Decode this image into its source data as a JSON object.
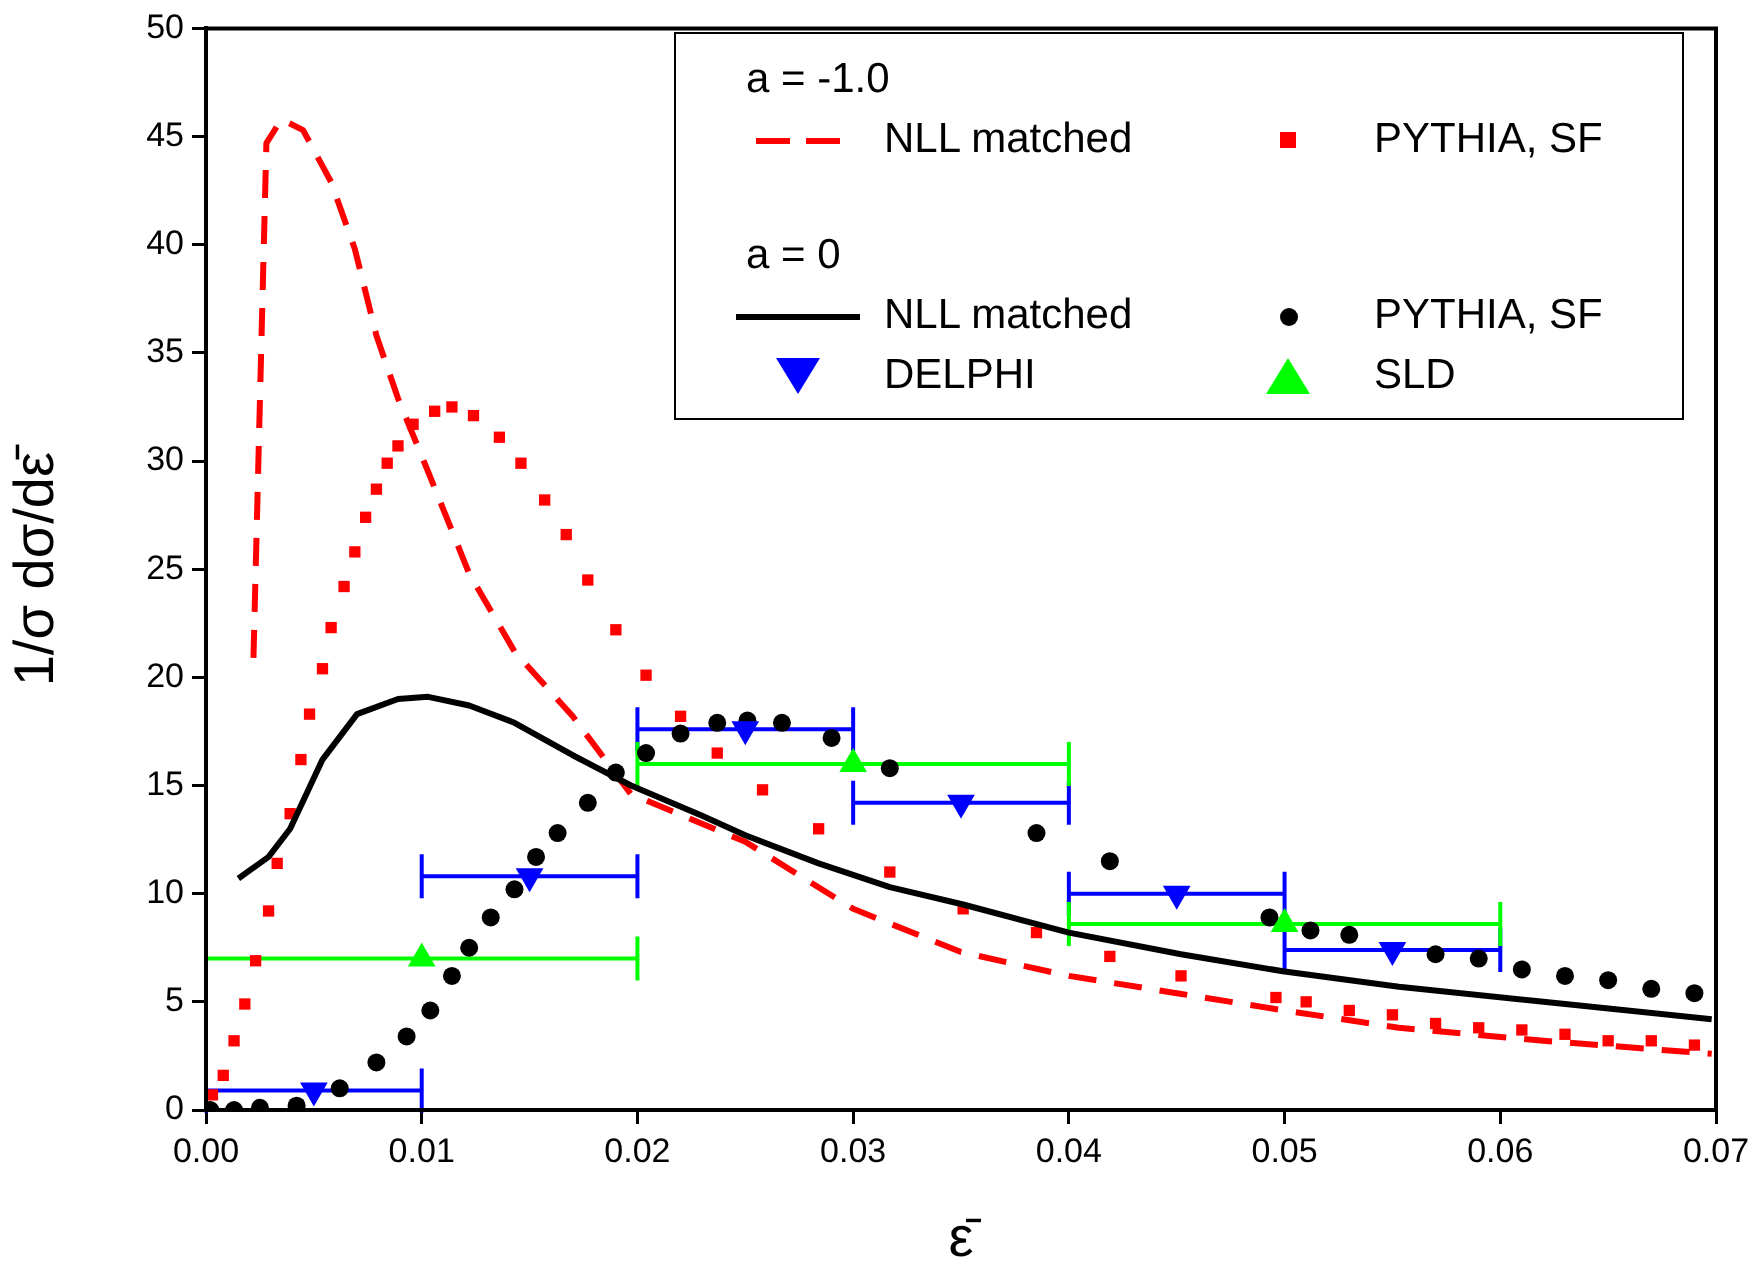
{
  "chart_data": {
    "type": "line",
    "xlabel": "ε̄",
    "ylabel": "1/σ dσ/dε̄",
    "xlim": [
      0,
      0.07
    ],
    "xticks": [
      {
        "value": 0,
        "label": "0.00"
      },
      {
        "value": 0.01,
        "label": "0.01"
      },
      {
        "value": 0.02,
        "label": "0.02"
      },
      {
        "value": 0.03,
        "label": "0.03"
      },
      {
        "value": 0.04,
        "label": "0.04"
      },
      {
        "value": 0.05,
        "label": "0.05"
      },
      {
        "value": 0.06,
        "label": "0.06"
      },
      {
        "value": 0.07,
        "label": "0.07"
      }
    ],
    "ylim": [
      0,
      50
    ],
    "yticks": [
      0,
      5,
      10,
      15,
      20,
      25,
      30,
      35,
      40,
      45,
      50
    ],
    "grid": false,
    "legend": "top right",
    "annotations": [
      "a = -1.0",
      "a = 0"
    ],
    "series": [
      {
        "name": "NLL matched",
        "color": "#ff0000",
        "line_style": "dashed",
        "marker": "none",
        "x": [
          0.0022,
          0.0028,
          0.0035,
          0.0045,
          0.0058,
          0.0069,
          0.0079,
          0.0089,
          0.0103,
          0.0122,
          0.0143,
          0.017,
          0.0197,
          0.025,
          0.03,
          0.035,
          0.04,
          0.045,
          0.05,
          0.0553,
          0.062,
          0.0698
        ],
        "values": [
          20.9,
          44.7,
          45.8,
          45.3,
          42.9,
          39.8,
          35.8,
          32.9,
          29.5,
          24.8,
          21.2,
          18.2,
          14.6,
          12.4,
          9.3,
          7.3,
          6.2,
          5.4,
          4.6,
          3.8,
          3.2,
          2.6
        ]
      },
      {
        "name": "PYTHIA, SF",
        "type": "scatter",
        "color": "#ff0000",
        "marker": "square",
        "x": [
          0.0003,
          0.0008,
          0.0013,
          0.0018,
          0.0023,
          0.0029,
          0.0033,
          0.0039,
          0.0044,
          0.0048,
          0.0054,
          0.0058,
          0.0064,
          0.0069,
          0.0074,
          0.0079,
          0.0084,
          0.0089,
          0.0096,
          0.0106,
          0.0114,
          0.0124,
          0.0136,
          0.0146,
          0.0157,
          0.0167,
          0.0177,
          0.019,
          0.0204,
          0.022,
          0.0237,
          0.0258,
          0.0284,
          0.0317,
          0.0351,
          0.0385,
          0.0419,
          0.0452,
          0.0496,
          0.051,
          0.053,
          0.055,
          0.057,
          0.059,
          0.061,
          0.063,
          0.065,
          0.067,
          0.069
        ],
        "values": [
          0.7,
          1.6,
          3.2,
          4.9,
          6.9,
          9.2,
          11.4,
          13.7,
          16.2,
          18.3,
          20.4,
          22.3,
          24.2,
          25.8,
          27.4,
          28.7,
          29.9,
          30.7,
          31.7,
          32.3,
          32.5,
          32.1,
          31.1,
          29.9,
          28.2,
          26.6,
          24.5,
          22.2,
          20.1,
          18.2,
          16.5,
          14.8,
          13.0,
          11.0,
          9.3,
          8.2,
          7.1,
          6.2,
          5.2,
          5.0,
          4.6,
          4.4,
          4.0,
          3.8,
          3.7,
          3.5,
          3.2,
          3.2,
          3.0
        ]
      },
      {
        "name": "NLL matched",
        "color": "#000000",
        "line_style": "solid",
        "marker": "none",
        "x": [
          0.0015,
          0.0029,
          0.0039,
          0.0054,
          0.007,
          0.0089,
          0.0103,
          0.0122,
          0.0143,
          0.017,
          0.0197,
          0.023,
          0.025,
          0.0284,
          0.0317,
          0.0351,
          0.04,
          0.0452,
          0.05,
          0.0553,
          0.062,
          0.0698
        ],
        "values": [
          10.7,
          11.7,
          13.0,
          16.2,
          18.3,
          19.0,
          19.1,
          18.7,
          17.9,
          16.4,
          15.0,
          13.6,
          12.7,
          11.4,
          10.3,
          9.5,
          8.2,
          7.2,
          6.4,
          5.7,
          5.0,
          4.2
        ]
      },
      {
        "name": "PYTHIA, SF",
        "type": "scatter",
        "color": "#000000",
        "marker": "circle",
        "x": [
          0.0002,
          0.0013,
          0.0025,
          0.0042,
          0.0062,
          0.0079,
          0.0093,
          0.0104,
          0.0114,
          0.0122,
          0.0132,
          0.0143,
          0.0153,
          0.0163,
          0.0177,
          0.019,
          0.0204,
          0.022,
          0.0237,
          0.0251,
          0.0267,
          0.029,
          0.0317,
          0.0351,
          0.0385,
          0.0419,
          0.0452,
          0.0493,
          0.0512,
          0.053,
          0.055,
          0.057,
          0.059,
          0.061,
          0.063,
          0.065,
          0.067,
          0.069
        ],
        "values": [
          0.0,
          0.0,
          0.1,
          0.2,
          1.0,
          2.2,
          3.4,
          4.6,
          6.2,
          7.5,
          8.9,
          10.2,
          11.7,
          12.8,
          14.2,
          15.6,
          16.5,
          17.4,
          17.9,
          18.0,
          17.9,
          17.2,
          15.8,
          null,
          12.8,
          11.5,
          null,
          8.9,
          8.3,
          8.1,
          null,
          7.2,
          7.0,
          6.5,
          6.2,
          6.0,
          5.6,
          5.4
        ]
      },
      {
        "name": "DELPHI",
        "type": "scatter",
        "color": "#0000ff",
        "marker": "triangle-down",
        "x": [
          0.005,
          0.015,
          0.025,
          0.035,
          0.045,
          0.055
        ],
        "values": [
          0.9,
          10.8,
          17.6,
          14.2,
          10.0,
          7.4
        ],
        "xerrors": [
          0.005,
          0.005,
          0.005,
          0.005,
          0.005,
          0.005
        ]
      },
      {
        "name": "SLD",
        "type": "scatter",
        "color": "#00ff00",
        "marker": "triangle",
        "x": [
          0.01,
          0.03,
          0.05
        ],
        "values": [
          7.0,
          16.0,
          8.6
        ],
        "xerrors": [
          0.01,
          0.01,
          0.01
        ]
      }
    ]
  }
}
